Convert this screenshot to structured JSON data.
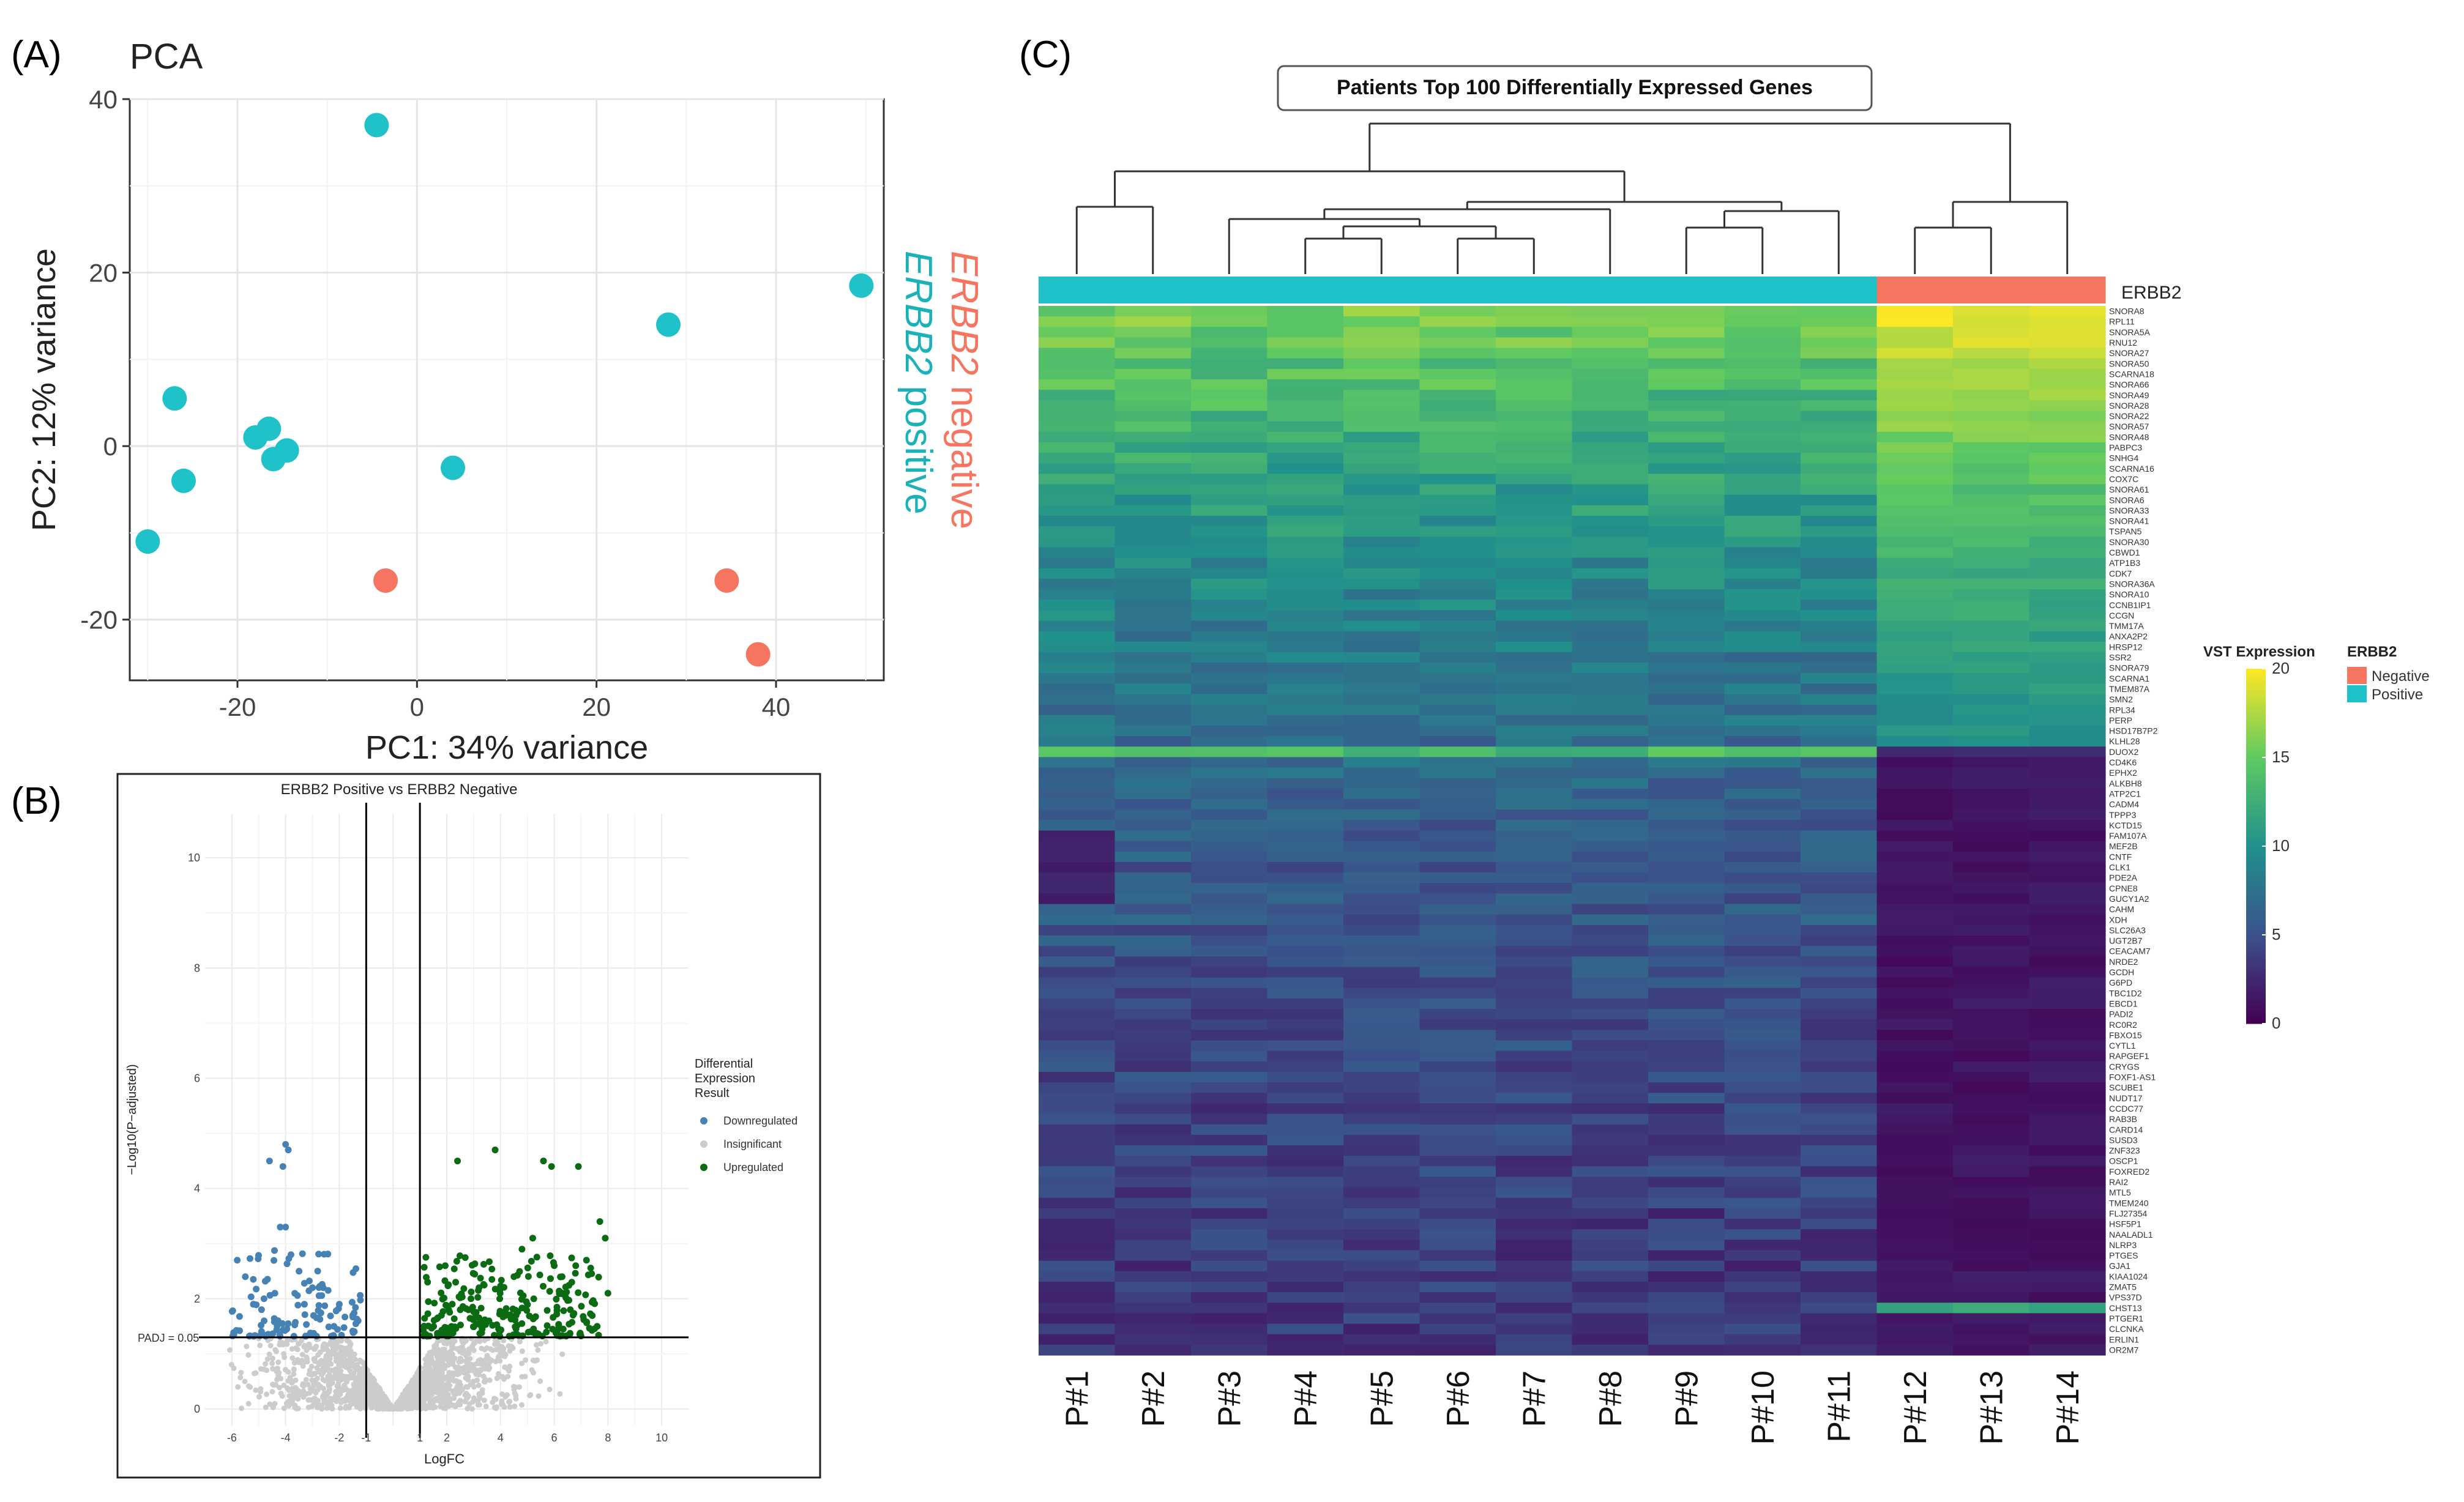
{
  "panels": {
    "a_label": "(A)",
    "b_label": "(B)",
    "c_label": "(C)"
  },
  "chart_data": [
    {
      "type": "scatter",
      "title": "PCA",
      "xlabel": "PC1: 34% variance",
      "ylabel": "PC2: 12% variance",
      "xlim": [
        -32,
        52
      ],
      "ylim": [
        -27,
        40
      ],
      "xticks": [
        -20,
        0,
        20,
        40
      ],
      "yticks": [
        -20,
        0,
        20,
        40
      ],
      "grid": true,
      "legend_position": "right",
      "series": [
        {
          "name": "ERBB2 positive",
          "legend_gene": "ERBB2",
          "legend_word": "positive",
          "color": "#1fc2c9",
          "points": [
            [
              -4.5,
              37
            ],
            [
              -27,
              5.5
            ],
            [
              -26,
              -4
            ],
            [
              -30,
              -11
            ],
            [
              -18,
              1
            ],
            [
              -16.5,
              2
            ],
            [
              -16,
              -1.5
            ],
            [
              -14.5,
              -0.5
            ],
            [
              4,
              -2.5
            ],
            [
              28,
              14
            ],
            [
              49.5,
              18.5
            ]
          ]
        },
        {
          "name": "ERBB2 negative",
          "legend_gene": "ERBB2",
          "legend_word": "negative",
          "color": "#f57560",
          "points": [
            [
              -3.5,
              -15.5
            ],
            [
              34.5,
              -15.5
            ],
            [
              38,
              -24
            ]
          ]
        }
      ]
    },
    {
      "type": "scatter",
      "title": "ERBB2 Positive vs ERBB2 Negative",
      "xlabel": "LogFC",
      "ylabel": "−Log10(P−adjusted)",
      "xlim": [
        -7,
        11
      ],
      "ylim": [
        -0.3,
        10.8
      ],
      "xticks": [
        -6,
        -4,
        -2,
        -1,
        1,
        2,
        4,
        6,
        8,
        10
      ],
      "yticks": [
        0,
        2,
        4,
        6,
        8,
        10
      ],
      "vlines": [
        -1,
        1
      ],
      "hline": 1.3,
      "hline_label": "PADJ = 0.05",
      "legend": {
        "title_lines": [
          "Differential",
          "Expression",
          "Result"
        ],
        "entries": [
          {
            "label": "Downregulated",
            "color": "#4682b4"
          },
          {
            "label": "Insignificant",
            "color": "#cccccc"
          },
          {
            "label": "Upregulated",
            "color": "#0a6b12"
          }
        ]
      },
      "labeled_points": {
        "Downregulated": [
          [
            -4.0,
            4.8
          ],
          [
            -3.9,
            4.7
          ],
          [
            -4.6,
            4.5
          ],
          [
            -4.1,
            4.4
          ],
          [
            -4.2,
            3.3
          ],
          [
            -4.0,
            3.3
          ],
          [
            -5.8,
            2.7
          ],
          [
            -5.5,
            2.4
          ],
          [
            -3.5,
            2.5
          ],
          [
            -3.0,
            2.2
          ],
          [
            -2.6,
            2.2
          ],
          [
            -1.5,
            1.7
          ],
          [
            -1.3,
            1.6
          ],
          [
            -2.2,
            1.5
          ],
          [
            -3.3,
            1.9
          ],
          [
            -4.8,
            1.6
          ],
          [
            -5.2,
            1.9
          ],
          [
            -3.8,
            2.8
          ],
          [
            -4.4,
            2.1
          ],
          [
            -2.0,
            1.9
          ]
        ],
        "Upregulated": [
          [
            3.8,
            4.7
          ],
          [
            2.4,
            4.5
          ],
          [
            5.9,
            4.4
          ],
          [
            5.6,
            4.5
          ],
          [
            6.9,
            4.4
          ],
          [
            7.7,
            3.4
          ],
          [
            7.9,
            3.1
          ],
          [
            5.2,
            3.1
          ],
          [
            4.8,
            2.9
          ],
          [
            6.0,
            2.6
          ],
          [
            7.2,
            2.7
          ],
          [
            8.0,
            2.1
          ],
          [
            3.2,
            2.2
          ],
          [
            4.5,
            2.4
          ],
          [
            2.5,
            1.8
          ],
          [
            2.9,
            2.0
          ],
          [
            1.8,
            1.7
          ],
          [
            6.6,
            1.8
          ],
          [
            7.6,
            1.5
          ],
          [
            4.2,
            1.7
          ]
        ]
      },
      "insignificant_note": "dense cloud of gray points below the PADJ line"
    },
    {
      "type": "heatmap",
      "title": "Patients Top 100 Differentially Expressed Genes",
      "columns": [
        "P#1",
        "P#2",
        "P#3",
        "P#4",
        "P#5",
        "P#6",
        "P#7",
        "P#8",
        "P#9",
        "P#10",
        "P#11",
        "P#12",
        "P#13",
        "P#14"
      ],
      "annotation_label": "ERBB2",
      "annotation": [
        "Positive",
        "Positive",
        "Positive",
        "Positive",
        "Positive",
        "Positive",
        "Positive",
        "Positive",
        "Positive",
        "Positive",
        "Positive",
        "Negative",
        "Negative",
        "Negative"
      ],
      "annotation_colors": {
        "Negative": "#f57560",
        "Positive": "#1fc2c9"
      },
      "genes": [
        "SNORA8",
        "RPL11",
        "SNORA5A",
        "RNU12",
        "SNORA27",
        "SNORA50",
        "SCARNA18",
        "SNORA66",
        "SNORA49",
        "SNORA28",
        "SNORA22",
        "SNORA57",
        "SNORA48",
        "PABPC3",
        "SNHG4",
        "SCARNA16",
        "COX7C",
        "SNORA61",
        "SNORA6",
        "SNORA33",
        "SNORA41",
        "TSPAN5",
        "SNORA30",
        "CBWD1",
        "ATP1B3",
        "CDK7",
        "SNORA36A",
        "SNORA10",
        "CCNB1IP1",
        "CCGN",
        "TMM17A",
        "ANXA2P2",
        "HRSP12",
        "SSR2",
        "SNORA79",
        "SCARNA1",
        "TMEM87A",
        "SMN2",
        "RPL34",
        "PERP",
        "HSD17B7P2",
        "KLHL28",
        "DUOX2",
        "CD4K6",
        "EPHX2",
        "ALKBH8",
        "ATP2C1",
        "CADM4",
        "TPPP3",
        "KCTD15",
        "FAM107A",
        "MEF2B",
        "CNTF",
        "CLK1",
        "PDE2A",
        "CPNE8",
        "GUCY1A2",
        "CAHM",
        "XDH",
        "SLC26A3",
        "UGT2B7",
        "CEACAM7",
        "NRDE2",
        "GCDH",
        "G6PD",
        "TBC1D2",
        "EBCD1",
        "PADI2",
        "RC0R2",
        "FBXO15",
        "CYTL1",
        "RAPGEF1",
        "CRYGS",
        "FOXF1-AS1",
        "SCUBE1",
        "NUDT17",
        "CCDC77",
        "RAB3B",
        "CARD14",
        "SUSD3",
        "ZNF323",
        "OSCP1",
        "FOXRED2",
        "RAI2",
        "MTL5",
        "TMEM240",
        "FLJ27354",
        "HSF5P1",
        "NAALADL1",
        "NLRP3",
        "PTGES",
        "GJA1",
        "KIAA1024",
        "ZMAT5",
        "VPS37D",
        "CHST13",
        "PTGER1",
        "CLCNKA",
        "ERLIN1",
        "OR2M7"
      ],
      "value_range": [
        0,
        20
      ],
      "colorbar_title": "VST Expression",
      "colorbar_ticks": [
        0,
        5,
        10,
        15,
        20
      ],
      "legend_title": "ERBB2",
      "legend_entries": [
        "Negative",
        "Positive"
      ],
      "row_profile_values": [
        16,
        16,
        15,
        15,
        14.5,
        14,
        14,
        14,
        13.5,
        13.5,
        13,
        13,
        12.5,
        12,
        12,
        11.5,
        11.5,
        11,
        11,
        11,
        10.5,
        10.5,
        10,
        10,
        9.5,
        9.5,
        9.5,
        9,
        9,
        9,
        8.5,
        8.5,
        8.5,
        8,
        8,
        8,
        8,
        7.5,
        7.5,
        7.5,
        7.5,
        7,
        13.5,
        7,
        7,
        6.5,
        6.5,
        6.5,
        6,
        6,
        6,
        6,
        6,
        5.5,
        5.5,
        5.5,
        5.5,
        5.5,
        5.5,
        5,
        5,
        5,
        5,
        5,
        5,
        5,
        5,
        4.5,
        4.5,
        4.5,
        4.5,
        4.5,
        4.5,
        4.5,
        4.5,
        4.5,
        4,
        4,
        4,
        4,
        4,
        4,
        4,
        4,
        4,
        4,
        3.5,
        3.5,
        3.5,
        3.5,
        3.5,
        3.5,
        3.5,
        3.5,
        3.5,
        3.5,
        3.5,
        3.5,
        3.5,
        3.5
      ]
    }
  ]
}
